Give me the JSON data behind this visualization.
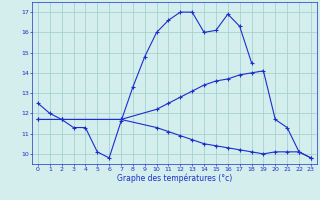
{
  "xlabel": "Graphe des températures (°c)",
  "bg_color": "#d4eeee",
  "line_color": "#1a2fcc",
  "grid_color": "#a0cccc",
  "xlim": [
    -0.5,
    23.5
  ],
  "ylim": [
    9.5,
    17.5
  ],
  "xticks": [
    0,
    1,
    2,
    3,
    4,
    5,
    6,
    7,
    8,
    9,
    10,
    11,
    12,
    13,
    14,
    15,
    16,
    17,
    18,
    19,
    20,
    21,
    22,
    23
  ],
  "yticks": [
    10,
    11,
    12,
    13,
    14,
    15,
    16,
    17
  ],
  "line1_x": [
    0,
    1,
    2,
    3,
    4,
    5,
    6,
    7,
    8,
    9,
    10,
    11,
    12,
    13,
    14,
    15,
    16,
    17,
    18
  ],
  "line1_y": [
    12.5,
    12.0,
    11.7,
    11.3,
    11.3,
    10.1,
    9.8,
    11.6,
    13.3,
    14.8,
    16.0,
    16.6,
    17.0,
    17.0,
    16.0,
    16.1,
    16.9,
    16.3,
    14.5
  ],
  "line2_x": [
    0,
    2,
    7,
    10,
    11,
    12,
    13,
    14,
    15,
    16,
    17,
    18,
    19,
    20,
    21,
    22,
    23
  ],
  "line2_y": [
    11.7,
    11.7,
    11.7,
    12.2,
    12.5,
    12.8,
    13.1,
    13.4,
    13.6,
    13.7,
    13.9,
    14.0,
    14.1,
    11.7,
    11.3,
    10.1,
    9.8
  ],
  "line3_x": [
    0,
    2,
    7,
    10,
    11,
    12,
    13,
    14,
    15,
    16,
    17,
    18,
    19,
    20,
    21,
    22,
    23
  ],
  "line3_y": [
    11.7,
    11.7,
    11.7,
    11.3,
    11.1,
    10.9,
    10.7,
    10.5,
    10.4,
    10.3,
    10.2,
    10.1,
    10.0,
    10.1,
    10.1,
    10.1,
    9.8
  ]
}
